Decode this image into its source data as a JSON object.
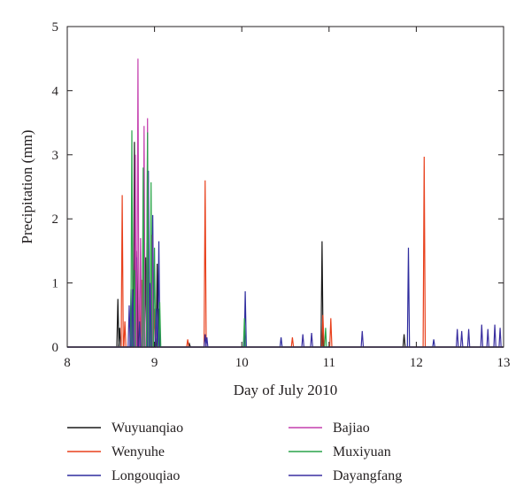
{
  "chart_data": {
    "type": "line",
    "title": "",
    "xlabel": "Day of July 2010",
    "ylabel": "Precipitation (mm)",
    "xlim": [
      8,
      13
    ],
    "ylim": [
      0,
      5
    ],
    "xticks": [
      "8",
      "9",
      "10",
      "11",
      "12",
      "13"
    ],
    "yticks": [
      "0",
      "1",
      "2",
      "3",
      "4",
      "5"
    ],
    "grid": false,
    "legend_position": "bottom",
    "series": [
      {
        "name": "Wuyuanqiao",
        "color": "#1a1a1a",
        "points": [
          [
            8.58,
            0.75
          ],
          [
            8.6,
            0.3
          ],
          [
            8.77,
            3.2
          ],
          [
            8.8,
            1.5
          ],
          [
            8.9,
            1.4
          ],
          [
            9.03,
            1.3
          ],
          [
            9.05,
            0.6
          ],
          [
            9.4,
            0.05
          ],
          [
            10.92,
            1.65
          ],
          [
            11.86,
            0.2
          ]
        ]
      },
      {
        "name": "Wenyuhe",
        "color": "#e8401c",
        "points": [
          [
            8.63,
            2.37
          ],
          [
            8.66,
            0.4
          ],
          [
            8.85,
            1.05
          ],
          [
            9.0,
            0.6
          ],
          [
            9.38,
            0.12
          ],
          [
            9.58,
            2.6
          ],
          [
            10.58,
            0.15
          ],
          [
            10.93,
            0.5
          ],
          [
            11.02,
            0.45
          ],
          [
            12.09,
            2.97
          ]
        ]
      },
      {
        "name": "Longouqiao",
        "color": "#2e2c9e",
        "points": [
          [
            8.73,
            0.9
          ],
          [
            8.79,
            1.4
          ],
          [
            8.88,
            2.07
          ],
          [
            8.93,
            2.75
          ],
          [
            8.98,
            2.06
          ],
          [
            9.05,
            1.65
          ],
          [
            9.58,
            0.2
          ],
          [
            10.04,
            0.87
          ],
          [
            10.45,
            0.15
          ],
          [
            11.91,
            1.55
          ],
          [
            12.2,
            0.12
          ]
        ]
      },
      {
        "name": "Bajiao",
        "color": "#c43eae",
        "points": [
          [
            8.78,
            3.0
          ],
          [
            8.81,
            4.5
          ],
          [
            8.84,
            1.7
          ],
          [
            8.88,
            3.45
          ],
          [
            8.92,
            3.57
          ],
          [
            8.97,
            1.75
          ],
          [
            9.02,
            0.3
          ]
        ]
      },
      {
        "name": "Muxiyuan",
        "color": "#2aa44a",
        "points": [
          [
            8.74,
            3.38
          ],
          [
            8.77,
            1.2
          ],
          [
            8.87,
            2.8
          ],
          [
            8.92,
            3.35
          ],
          [
            8.96,
            2.57
          ],
          [
            9.0,
            1.55
          ],
          [
            9.06,
            0.7
          ],
          [
            10.03,
            0.45
          ],
          [
            10.96,
            0.3
          ]
        ]
      },
      {
        "name": "Dayangfang",
        "color": "#3a2fa0",
        "points": [
          [
            8.71,
            0.65
          ],
          [
            8.75,
            0.9
          ],
          [
            8.83,
            0.4
          ],
          [
            8.95,
            1.0
          ],
          [
            9.02,
            0.6
          ],
          [
            9.6,
            0.15
          ],
          [
            10.7,
            0.2
          ],
          [
            10.8,
            0.22
          ],
          [
            11.38,
            0.25
          ],
          [
            12.47,
            0.28
          ],
          [
            12.52,
            0.25
          ],
          [
            12.6,
            0.28
          ],
          [
            12.75,
            0.35
          ],
          [
            12.82,
            0.28
          ],
          [
            12.9,
            0.35
          ],
          [
            12.96,
            0.3
          ]
        ]
      }
    ]
  }
}
